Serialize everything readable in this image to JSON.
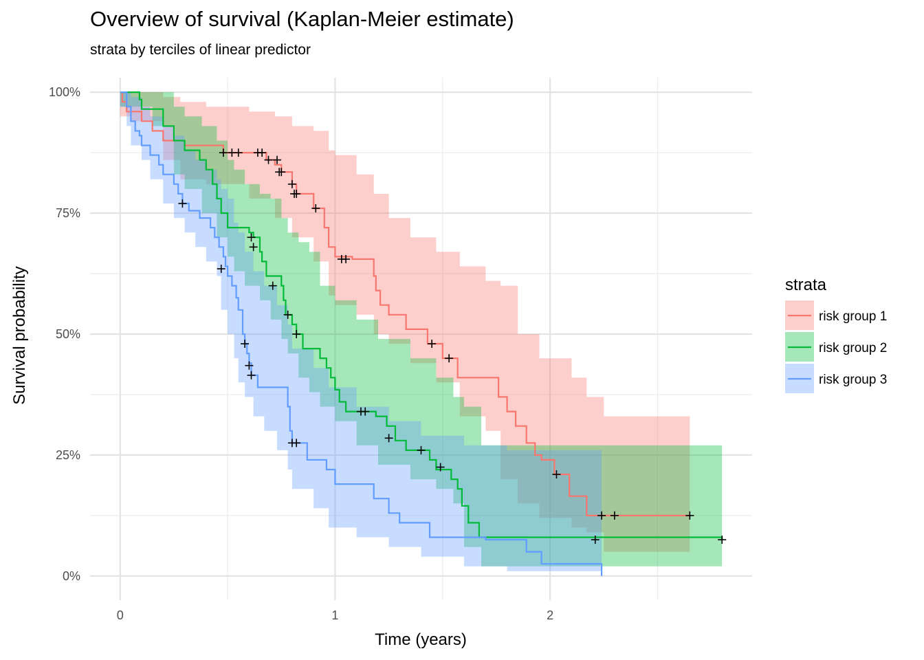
{
  "chart_data": {
    "type": "line",
    "subtype": "kaplan-meier step curves with confidence bands",
    "title": "Overview of survival (Kaplan-Meier estimate)",
    "subtitle": "strata by terciles of linear predictor",
    "xlabel": "Time (years)",
    "ylabel": "Survival probability",
    "xlim": [
      -0.14,
      2.94
    ],
    "ylim": [
      -0.05,
      1.03
    ],
    "x_ticks": [
      0,
      1,
      2
    ],
    "x_tick_labels": [
      "0",
      "1",
      "2"
    ],
    "x_minor_ticks": [
      0.5,
      1.5,
      2.5
    ],
    "y_ticks": [
      0,
      0.25,
      0.5,
      0.75,
      1
    ],
    "y_tick_labels": [
      "0%",
      "25%",
      "50%",
      "75%",
      "100%"
    ],
    "y_minor_ticks": [
      0.125,
      0.375,
      0.625,
      0.875
    ],
    "grid": true,
    "legend": {
      "title": "strata",
      "position": "right"
    },
    "series": [
      {
        "name": "risk group 1",
        "color": "#F8766D",
        "steps": [
          [
            0,
            1
          ],
          [
            0.01,
            0.98
          ],
          [
            0.03,
            0.96
          ],
          [
            0.1,
            0.94
          ],
          [
            0.15,
            0.92
          ],
          [
            0.2,
            0.9
          ],
          [
            0.3,
            0.89
          ],
          [
            0.48,
            0.875
          ],
          [
            0.68,
            0.86
          ],
          [
            0.72,
            0.85
          ],
          [
            0.75,
            0.835
          ],
          [
            0.8,
            0.81
          ],
          [
            0.82,
            0.79
          ],
          [
            0.9,
            0.76
          ],
          [
            0.95,
            0.72
          ],
          [
            0.97,
            0.68
          ],
          [
            1,
            0.66
          ],
          [
            1.08,
            0.655
          ],
          [
            1.18,
            0.62
          ],
          [
            1.19,
            0.59
          ],
          [
            1.21,
            0.56
          ],
          [
            1.25,
            0.54
          ],
          [
            1.33,
            0.51
          ],
          [
            1.43,
            0.48
          ],
          [
            1.5,
            0.45
          ],
          [
            1.57,
            0.41
          ],
          [
            1.76,
            0.37
          ],
          [
            1.8,
            0.34
          ],
          [
            1.84,
            0.31
          ],
          [
            1.89,
            0.275
          ],
          [
            1.93,
            0.25
          ],
          [
            1.96,
            0.24
          ],
          [
            2.02,
            0.21
          ],
          [
            2.09,
            0.165
          ],
          [
            2.17,
            0.125
          ],
          [
            2.65,
            0.125
          ]
        ],
        "band": [
          [
            0,
            1,
            0.95
          ],
          [
            0.05,
            1,
            0.94
          ],
          [
            0.2,
            0.99,
            0.86
          ],
          [
            0.28,
            0.98,
            0.82
          ],
          [
            0.4,
            0.97,
            0.81
          ],
          [
            0.6,
            0.96,
            0.78
          ],
          [
            0.72,
            0.95,
            0.74
          ],
          [
            0.8,
            0.93,
            0.7
          ],
          [
            0.9,
            0.92,
            0.65
          ],
          [
            0.97,
            0.88,
            0.58
          ],
          [
            1,
            0.87,
            0.56
          ],
          [
            1.1,
            0.83,
            0.54
          ],
          [
            1.18,
            0.79,
            0.5
          ],
          [
            1.25,
            0.74,
            0.48
          ],
          [
            1.35,
            0.7,
            0.44
          ],
          [
            1.47,
            0.67,
            0.4
          ],
          [
            1.58,
            0.64,
            0.33
          ],
          [
            1.7,
            0.61,
            0.3
          ],
          [
            1.77,
            0.6,
            0.2
          ],
          [
            1.85,
            0.5,
            0.15
          ],
          [
            1.95,
            0.45,
            0.12
          ],
          [
            2.1,
            0.41,
            0.1
          ],
          [
            2.17,
            0.37,
            0.09
          ],
          [
            2.25,
            0.33,
            0.05
          ],
          [
            2.65,
            0.33,
            0.05
          ]
        ],
        "censored": [
          [
            0.48,
            0.875
          ],
          [
            0.52,
            0.875
          ],
          [
            0.55,
            0.875
          ],
          [
            0.64,
            0.875
          ],
          [
            0.66,
            0.875
          ],
          [
            0.69,
            0.86
          ],
          [
            0.73,
            0.86
          ],
          [
            0.74,
            0.835
          ],
          [
            0.75,
            0.835
          ],
          [
            0.8,
            0.81
          ],
          [
            0.81,
            0.79
          ],
          [
            0.82,
            0.79
          ],
          [
            0.91,
            0.76
          ],
          [
            1.03,
            0.655
          ],
          [
            1.05,
            0.655
          ],
          [
            1.45,
            0.48
          ],
          [
            1.53,
            0.45
          ],
          [
            2.03,
            0.21
          ],
          [
            2.24,
            0.125
          ],
          [
            2.3,
            0.125
          ],
          [
            2.65,
            0.125
          ]
        ]
      },
      {
        "name": "risk group 2",
        "color": "#00BA38",
        "steps": [
          [
            0,
            1
          ],
          [
            0.09,
            0.985
          ],
          [
            0.1,
            0.965
          ],
          [
            0.2,
            0.93
          ],
          [
            0.25,
            0.9
          ],
          [
            0.3,
            0.88
          ],
          [
            0.37,
            0.86
          ],
          [
            0.4,
            0.84
          ],
          [
            0.43,
            0.81
          ],
          [
            0.45,
            0.78
          ],
          [
            0.47,
            0.75
          ],
          [
            0.5,
            0.72
          ],
          [
            0.6,
            0.71
          ],
          [
            0.62,
            0.7
          ],
          [
            0.65,
            0.67
          ],
          [
            0.66,
            0.65
          ],
          [
            0.68,
            0.62
          ],
          [
            0.75,
            0.6
          ],
          [
            0.76,
            0.57
          ],
          [
            0.77,
            0.54
          ],
          [
            0.8,
            0.52
          ],
          [
            0.82,
            0.5
          ],
          [
            0.85,
            0.47
          ],
          [
            0.93,
            0.45
          ],
          [
            0.96,
            0.43
          ],
          [
            0.98,
            0.41
          ],
          [
            1,
            0.385
          ],
          [
            1.02,
            0.36
          ],
          [
            1.05,
            0.34
          ],
          [
            1.19,
            0.33
          ],
          [
            1.24,
            0.31
          ],
          [
            1.28,
            0.28
          ],
          [
            1.33,
            0.26
          ],
          [
            1.44,
            0.24
          ],
          [
            1.47,
            0.22
          ],
          [
            1.54,
            0.2
          ],
          [
            1.57,
            0.18
          ],
          [
            1.59,
            0.145
          ],
          [
            1.62,
            0.11
          ],
          [
            1.67,
            0.08
          ],
          [
            2.8,
            0.075
          ]
        ],
        "band": [
          [
            0,
            1,
            0.97
          ],
          [
            0.15,
            1,
            0.93
          ],
          [
            0.25,
            0.97,
            0.83
          ],
          [
            0.3,
            0.95,
            0.8
          ],
          [
            0.38,
            0.93,
            0.75
          ],
          [
            0.45,
            0.9,
            0.7
          ],
          [
            0.5,
            0.86,
            0.66
          ],
          [
            0.53,
            0.84,
            0.63
          ],
          [
            0.58,
            0.81,
            0.6
          ],
          [
            0.65,
            0.79,
            0.57
          ],
          [
            0.7,
            0.78,
            0.53
          ],
          [
            0.75,
            0.74,
            0.49
          ],
          [
            0.78,
            0.71,
            0.46
          ],
          [
            0.83,
            0.69,
            0.41
          ],
          [
            0.88,
            0.67,
            0.38
          ],
          [
            0.93,
            0.6,
            0.35
          ],
          [
            1,
            0.57,
            0.32
          ],
          [
            1.1,
            0.53,
            0.27
          ],
          [
            1.2,
            0.49,
            0.23
          ],
          [
            1.35,
            0.45,
            0.2
          ],
          [
            1.47,
            0.41,
            0.18
          ],
          [
            1.55,
            0.37,
            0.15
          ],
          [
            1.6,
            0.35,
            0.06
          ],
          [
            1.68,
            0.27,
            0.02
          ],
          [
            2.8,
            0.27,
            0.02
          ]
        ],
        "censored": [
          [
            0.61,
            0.7
          ],
          [
            0.62,
            0.68
          ],
          [
            0.71,
            0.6
          ],
          [
            0.78,
            0.54
          ],
          [
            0.82,
            0.5
          ],
          [
            1.12,
            0.34
          ],
          [
            1.14,
            0.34
          ],
          [
            1.25,
            0.285
          ],
          [
            1.4,
            0.26
          ],
          [
            1.49,
            0.225
          ],
          [
            2.21,
            0.075
          ],
          [
            2.8,
            0.075
          ]
        ]
      },
      {
        "name": "risk group 3",
        "color": "#619CFF",
        "steps": [
          [
            0,
            1
          ],
          [
            0.03,
            0.97
          ],
          [
            0.05,
            0.94
          ],
          [
            0.07,
            0.92
          ],
          [
            0.09,
            0.91
          ],
          [
            0.1,
            0.89
          ],
          [
            0.14,
            0.87
          ],
          [
            0.18,
            0.85
          ],
          [
            0.2,
            0.83
          ],
          [
            0.25,
            0.81
          ],
          [
            0.27,
            0.79
          ],
          [
            0.29,
            0.77
          ],
          [
            0.32,
            0.755
          ],
          [
            0.37,
            0.74
          ],
          [
            0.42,
            0.72
          ],
          [
            0.44,
            0.7
          ],
          [
            0.46,
            0.68
          ],
          [
            0.48,
            0.66
          ],
          [
            0.49,
            0.64
          ],
          [
            0.5,
            0.62
          ],
          [
            0.52,
            0.6
          ],
          [
            0.54,
            0.575
          ],
          [
            0.55,
            0.55
          ],
          [
            0.57,
            0.5
          ],
          [
            0.58,
            0.48
          ],
          [
            0.59,
            0.46
          ],
          [
            0.6,
            0.44
          ],
          [
            0.61,
            0.415
          ],
          [
            0.64,
            0.39
          ],
          [
            0.78,
            0.35
          ],
          [
            0.79,
            0.3
          ],
          [
            0.8,
            0.275
          ],
          [
            0.87,
            0.24
          ],
          [
            0.96,
            0.22
          ],
          [
            1,
            0.19
          ],
          [
            1.18,
            0.16
          ],
          [
            1.25,
            0.13
          ],
          [
            1.3,
            0.11
          ],
          [
            1.44,
            0.08
          ],
          [
            1.7,
            0.075
          ],
          [
            1.89,
            0.05
          ],
          [
            1.96,
            0.025
          ],
          [
            2.24,
            0
          ]
        ],
        "band": [
          [
            0,
            1,
            0.97
          ],
          [
            0.03,
            1,
            0.93
          ],
          [
            0.05,
            0.99,
            0.89
          ],
          [
            0.1,
            0.97,
            0.86
          ],
          [
            0.14,
            0.95,
            0.82
          ],
          [
            0.2,
            0.93,
            0.77
          ],
          [
            0.25,
            0.91,
            0.74
          ],
          [
            0.3,
            0.88,
            0.71
          ],
          [
            0.35,
            0.86,
            0.68
          ],
          [
            0.4,
            0.84,
            0.65
          ],
          [
            0.45,
            0.82,
            0.62
          ],
          [
            0.47,
            0.8,
            0.55
          ],
          [
            0.5,
            0.78,
            0.5
          ],
          [
            0.53,
            0.73,
            0.45
          ],
          [
            0.55,
            0.71,
            0.4
          ],
          [
            0.58,
            0.67,
            0.37
          ],
          [
            0.62,
            0.63,
            0.33
          ],
          [
            0.67,
            0.6,
            0.3
          ],
          [
            0.73,
            0.56,
            0.26
          ],
          [
            0.78,
            0.52,
            0.22
          ],
          [
            0.8,
            0.47,
            0.18
          ],
          [
            0.9,
            0.43,
            0.14
          ],
          [
            0.97,
            0.39,
            0.1
          ],
          [
            1.1,
            0.35,
            0.08
          ],
          [
            1.25,
            0.32,
            0.06
          ],
          [
            1.4,
            0.29,
            0.04
          ],
          [
            1.6,
            0.27,
            0.02
          ],
          [
            1.8,
            0.26,
            0.01
          ],
          [
            2.24,
            0.26,
            0
          ]
        ],
        "censored": [
          [
            0.29,
            0.77
          ],
          [
            0.47,
            0.635
          ],
          [
            0.58,
            0.48
          ],
          [
            0.6,
            0.435
          ],
          [
            0.61,
            0.415
          ],
          [
            0.8,
            0.275
          ],
          [
            0.82,
            0.275
          ]
        ]
      }
    ]
  }
}
